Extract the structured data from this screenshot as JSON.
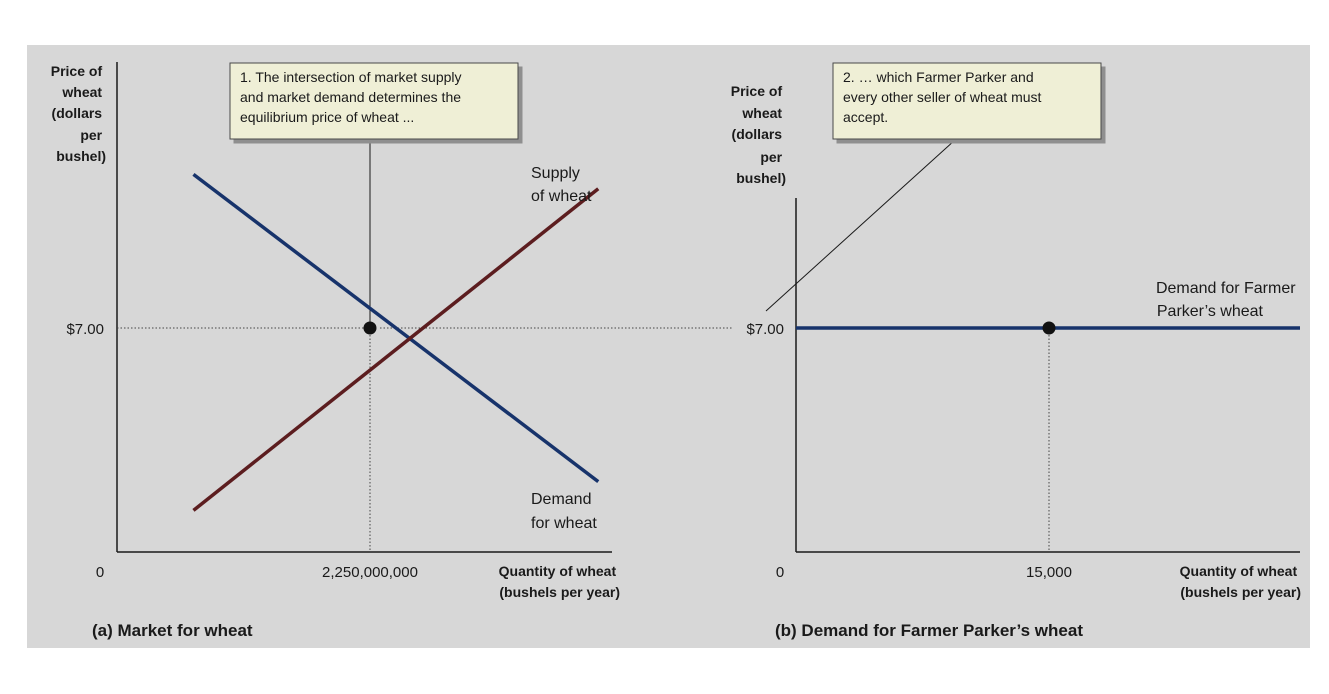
{
  "colors": {
    "panel_bg": "#d7d7d7",
    "demand": "#17336b",
    "supply": "#5c1d1f",
    "callout_bg": "#efefd6",
    "axis": "#1a1a1a"
  },
  "chart_data": [
    {
      "type": "line",
      "panel_title": "(a) Market for wheat",
      "ylabel": [
        "Price of",
        "wheat",
        "(dollars",
        "per",
        "bushel)"
      ],
      "xlabel": [
        "Quantity of wheat",
        "(bushels per year)"
      ],
      "origin_label": "0",
      "x_tick": {
        "value": 2250000000,
        "label": "2,250,000,000"
      },
      "y_tick": {
        "value": 7.0,
        "label": "$7.00"
      },
      "grid": false,
      "series": [
        {
          "name": "Demand for wheat",
          "label": [
            "Demand",
            "for wheat"
          ],
          "color": "#17336b",
          "points": [
            [
              0.68,
              11.8
            ],
            [
              4.28,
              2.2
            ]
          ]
        },
        {
          "name": "Supply of wheat",
          "label": [
            "Supply",
            "of wheat"
          ],
          "color": "#5c1d1f",
          "points": [
            [
              0.68,
              1.3
            ],
            [
              4.28,
              11.35
            ]
          ]
        }
      ],
      "equilibrium": {
        "x": 2250000000,
        "y": 7.0
      },
      "callout": [
        "1. The intersection of market supply",
        "and market demand determines the",
        "equilibrium price of wheat ..."
      ]
    },
    {
      "type": "line",
      "panel_title": "(b) Demand for Farmer Parker’s wheat",
      "ylabel": [
        "Price of",
        "wheat",
        "(dollars",
        "per",
        "bushel)"
      ],
      "xlabel": [
        "Quantity of wheat",
        "(bushels per year)"
      ],
      "origin_label": "0",
      "x_tick": {
        "value": 15000,
        "label": "15,000"
      },
      "y_tick": {
        "value": 7.0,
        "label": "$7.00"
      },
      "grid": false,
      "series": [
        {
          "name": "Demand for Farmer Parker’s wheat",
          "label": [
            "Demand for Farmer",
            "Parker’s wheat"
          ],
          "color": "#17336b",
          "points": [
            [
              0,
              7.0
            ],
            [
              30000,
              7.0
            ]
          ]
        }
      ],
      "point": {
        "x": 15000,
        "y": 7.0
      },
      "callout": [
        "2.  … which Farmer Parker and",
        "every other seller of wheat must",
        "accept."
      ]
    }
  ]
}
